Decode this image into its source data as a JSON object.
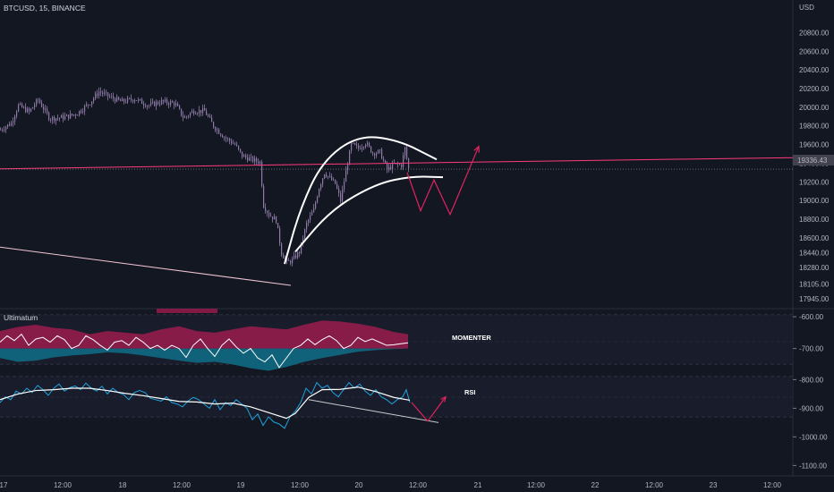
{
  "header": {
    "symbol_line": "BTCUSD, 15, BINANCE",
    "currency": "USD"
  },
  "indicator": {
    "name": "Ultimatum",
    "momentum_label": "MOMENTER",
    "rsi_label": "RSI"
  },
  "current_price_label": "19336.43",
  "colors": {
    "background": "#131722",
    "candle": "#8e7aa6",
    "pink_line": "#ff3a7a",
    "arrow": "#e0245e",
    "momentum_pink": "#9c1c4f",
    "momentum_teal": "#0f6f88",
    "rsi_blue": "#1fa3e0",
    "white": "#ffffff"
  },
  "chart_data": [
    {
      "type": "candlestick",
      "title": "BTCUSD, 15, BINANCE",
      "ylabel": "USD",
      "ylim": [
        17860,
        21150
      ],
      "y_ticks": [
        20800.0,
        20600.0,
        20400.0,
        20200.0,
        20000.0,
        19800.0,
        19600.0,
        19400.0,
        19200.0,
        19000.0,
        18800.0,
        18600.0,
        18440.0,
        18280.0,
        18105.0,
        17945.0
      ],
      "x_ticks": [
        "17",
        "12:00",
        "18",
        "12:00",
        "19",
        "12:00",
        "20",
        "12:00",
        "21",
        "12:00",
        "22",
        "12:00",
        "23",
        "12:00"
      ],
      "close_path": [
        {
          "x": 0,
          "y": 19760
        },
        {
          "x": 12,
          "y": 19830
        },
        {
          "x": 20,
          "y": 20020
        },
        {
          "x": 32,
          "y": 19950
        },
        {
          "x": 42,
          "y": 20080
        },
        {
          "x": 55,
          "y": 19880
        },
        {
          "x": 70,
          "y": 19890
        },
        {
          "x": 85,
          "y": 19930
        },
        {
          "x": 100,
          "y": 20050
        },
        {
          "x": 110,
          "y": 20170
        },
        {
          "x": 122,
          "y": 20110
        },
        {
          "x": 135,
          "y": 20060
        },
        {
          "x": 150,
          "y": 20090
        },
        {
          "x": 165,
          "y": 20020
        },
        {
          "x": 180,
          "y": 20060
        },
        {
          "x": 195,
          "y": 20040
        },
        {
          "x": 205,
          "y": 19880
        },
        {
          "x": 215,
          "y": 19960
        },
        {
          "x": 228,
          "y": 19960
        },
        {
          "x": 238,
          "y": 19800
        },
        {
          "x": 250,
          "y": 19680
        },
        {
          "x": 262,
          "y": 19600
        },
        {
          "x": 270,
          "y": 19480
        },
        {
          "x": 280,
          "y": 19440
        },
        {
          "x": 290,
          "y": 19410
        },
        {
          "x": 294,
          "y": 18950
        },
        {
          "x": 300,
          "y": 18850
        },
        {
          "x": 308,
          "y": 18790
        },
        {
          "x": 314,
          "y": 18440
        },
        {
          "x": 320,
          "y": 18330
        },
        {
          "x": 326,
          "y": 18360
        },
        {
          "x": 334,
          "y": 18450
        },
        {
          "x": 342,
          "y": 18750
        },
        {
          "x": 350,
          "y": 18900
        },
        {
          "x": 356,
          "y": 19140
        },
        {
          "x": 362,
          "y": 19300
        },
        {
          "x": 368,
          "y": 19240
        },
        {
          "x": 374,
          "y": 19180
        },
        {
          "x": 380,
          "y": 19000
        },
        {
          "x": 386,
          "y": 19310
        },
        {
          "x": 392,
          "y": 19600
        },
        {
          "x": 400,
          "y": 19560
        },
        {
          "x": 408,
          "y": 19620
        },
        {
          "x": 416,
          "y": 19510
        },
        {
          "x": 424,
          "y": 19520
        },
        {
          "x": 432,
          "y": 19330
        },
        {
          "x": 440,
          "y": 19390
        },
        {
          "x": 448,
          "y": 19380
        },
        {
          "x": 452,
          "y": 19560
        },
        {
          "x": 456,
          "y": 19340
        }
      ],
      "pink_horizontal": [
        [
          0,
          19340
        ],
        [
          886,
          19460
        ]
      ],
      "lower_trendline": [
        [
          0,
          18500
        ],
        [
          325,
          18090
        ]
      ],
      "arc_upper": [
        [
          318,
          18320
        ],
        [
          335,
          18900
        ],
        [
          360,
          19420
        ],
        [
          400,
          19700
        ],
        [
          445,
          19650
        ],
        [
          488,
          19440
        ]
      ],
      "arc_lower": [
        [
          330,
          18450
        ],
        [
          370,
          18900
        ],
        [
          420,
          19180
        ],
        [
          460,
          19260
        ],
        [
          495,
          19250
        ]
      ],
      "projection": [
        [
          455,
          19300
        ],
        [
          470,
          18890
        ],
        [
          485,
          19220
        ],
        [
          503,
          18850
        ],
        [
          535,
          19580
        ]
      ]
    },
    {
      "type": "area",
      "title": "MOMENTER",
      "ylim": [
        -780,
        -580
      ],
      "y_ticks": [
        -600.0,
        -700.0
      ],
      "upper_band": [
        [
          0,
          -645
        ],
        [
          20,
          -632
        ],
        [
          40,
          -625
        ],
        [
          60,
          -635
        ],
        [
          80,
          -640
        ],
        [
          100,
          -655
        ],
        [
          120,
          -645
        ],
        [
          140,
          -650
        ],
        [
          160,
          -655
        ],
        [
          180,
          -640
        ],
        [
          200,
          -630
        ],
        [
          220,
          -645
        ],
        [
          240,
          -650
        ],
        [
          260,
          -640
        ],
        [
          280,
          -630
        ],
        [
          300,
          -635
        ],
        [
          320,
          -640
        ],
        [
          340,
          -625
        ],
        [
          360,
          -612
        ],
        [
          380,
          -615
        ],
        [
          400,
          -622
        ],
        [
          420,
          -632
        ],
        [
          440,
          -648
        ],
        [
          456,
          -655
        ]
      ],
      "lower_band": [
        [
          0,
          -730
        ],
        [
          20,
          -742
        ],
        [
          40,
          -738
        ],
        [
          60,
          -728
        ],
        [
          80,
          -722
        ],
        [
          100,
          -718
        ],
        [
          120,
          -712
        ],
        [
          140,
          -715
        ],
        [
          160,
          -722
        ],
        [
          180,
          -730
        ],
        [
          200,
          -738
        ],
        [
          220,
          -745
        ],
        [
          240,
          -742
        ],
        [
          260,
          -750
        ],
        [
          280,
          -762
        ],
        [
          300,
          -770
        ],
        [
          320,
          -758
        ],
        [
          340,
          -742
        ],
        [
          360,
          -730
        ],
        [
          380,
          -720
        ],
        [
          400,
          -710
        ],
        [
          420,
          -705
        ],
        [
          440,
          -702
        ],
        [
          456,
          -700
        ]
      ],
      "line": [
        [
          0,
          -680
        ],
        [
          8,
          -660
        ],
        [
          16,
          -675
        ],
        [
          24,
          -655
        ],
        [
          32,
          -690
        ],
        [
          40,
          -670
        ],
        [
          48,
          -665
        ],
        [
          56,
          -680
        ],
        [
          64,
          -660
        ],
        [
          72,
          -672
        ],
        [
          80,
          -700
        ],
        [
          88,
          -690
        ],
        [
          96,
          -660
        ],
        [
          104,
          -672
        ],
        [
          112,
          -690
        ],
        [
          120,
          -705
        ],
        [
          128,
          -680
        ],
        [
          136,
          -675
        ],
        [
          144,
          -690
        ],
        [
          152,
          -665
        ],
        [
          160,
          -680
        ],
        [
          168,
          -700
        ],
        [
          176,
          -690
        ],
        [
          184,
          -705
        ],
        [
          192,
          -690
        ],
        [
          200,
          -700
        ],
        [
          208,
          -728
        ],
        [
          216,
          -690
        ],
        [
          224,
          -670
        ],
        [
          232,
          -700
        ],
        [
          240,
          -725
        ],
        [
          248,
          -690
        ],
        [
          256,
          -670
        ],
        [
          264,
          -695
        ],
        [
          272,
          -715
        ],
        [
          280,
          -700
        ],
        [
          288,
          -730
        ],
        [
          296,
          -742
        ],
        [
          304,
          -720
        ],
        [
          312,
          -760
        ],
        [
          320,
          -730
        ],
        [
          328,
          -700
        ],
        [
          336,
          -690
        ],
        [
          344,
          -670
        ],
        [
          352,
          -688
        ],
        [
          360,
          -672
        ],
        [
          368,
          -660
        ],
        [
          376,
          -675
        ],
        [
          384,
          -700
        ],
        [
          392,
          -690
        ],
        [
          400,
          -665
        ],
        [
          408,
          -678
        ],
        [
          416,
          -670
        ],
        [
          424,
          -680
        ],
        [
          432,
          -690
        ],
        [
          440,
          -688
        ],
        [
          448,
          -685
        ],
        [
          456,
          -682
        ]
      ]
    },
    {
      "type": "line",
      "title": "RSI",
      "ylim": [
        -1130,
        -780
      ],
      "y_ticks": [
        -800.0,
        -900.0,
        -1000.0,
        -1100.0
      ],
      "series": [
        {
          "values_xy": [
            [
              0,
              -880
            ],
            [
              6,
              -860
            ],
            [
              12,
              -870
            ],
            [
              18,
              -840
            ],
            [
              24,
              -850
            ],
            [
              30,
              -830
            ],
            [
              36,
              -845
            ],
            [
              42,
              -820
            ],
            [
              48,
              -835
            ],
            [
              54,
              -855
            ],
            [
              60,
              -830
            ],
            [
              66,
              -815
            ],
            [
              72,
              -840
            ],
            [
              78,
              -828
            ],
            [
              84,
              -822
            ],
            [
              90,
              -835
            ],
            [
              96,
              -812
            ],
            [
              102,
              -830
            ],
            [
              108,
              -840
            ],
            [
              114,
              -823
            ],
            [
              120,
              -850
            ],
            [
              126,
              -830
            ],
            [
              132,
              -845
            ],
            [
              138,
              -852
            ],
            [
              144,
              -870
            ],
            [
              150,
              -845
            ],
            [
              156,
              -838
            ],
            [
              162,
              -845
            ],
            [
              168,
              -865
            ],
            [
              174,
              -870
            ],
            [
              180,
              -875
            ],
            [
              186,
              -860
            ],
            [
              192,
              -880
            ],
            [
              198,
              -885
            ],
            [
              204,
              -895
            ],
            [
              210,
              -875
            ],
            [
              216,
              -862
            ],
            [
              222,
              -870
            ],
            [
              228,
              -885
            ],
            [
              234,
              -900
            ],
            [
              240,
              -870
            ],
            [
              246,
              -905
            ],
            [
              252,
              -880
            ],
            [
              258,
              -890
            ],
            [
              264,
              -870
            ],
            [
              270,
              -885
            ],
            [
              276,
              -900
            ],
            [
              282,
              -940
            ],
            [
              288,
              -920
            ],
            [
              294,
              -960
            ],
            [
              300,
              -930
            ],
            [
              306,
              -948
            ],
            [
              312,
              -955
            ],
            [
              318,
              -970
            ],
            [
              324,
              -930
            ],
            [
              330,
              -910
            ],
            [
              336,
              -880
            ],
            [
              342,
              -830
            ],
            [
              348,
              -850
            ],
            [
              354,
              -810
            ],
            [
              360,
              -830
            ],
            [
              366,
              -820
            ],
            [
              372,
              -845
            ],
            [
              378,
              -860
            ],
            [
              384,
              -835
            ],
            [
              390,
              -810
            ],
            [
              396,
              -830
            ],
            [
              402,
              -815
            ],
            [
              408,
              -840
            ],
            [
              414,
              -855
            ],
            [
              420,
              -835
            ],
            [
              426,
              -860
            ],
            [
              432,
              -870
            ],
            [
              438,
              -885
            ],
            [
              444,
              -870
            ],
            [
              450,
              -860
            ],
            [
              454,
              -835
            ],
            [
              458,
              -880
            ]
          ]
        },
        {
          "values_xy": [
            [
              0,
              -870
            ],
            [
              20,
              -850
            ],
            [
              40,
              -838
            ],
            [
              60,
              -835
            ],
            [
              80,
              -830
            ],
            [
              100,
              -830
            ],
            [
              120,
              -838
            ],
            [
              140,
              -848
            ],
            [
              160,
              -856
            ],
            [
              180,
              -866
            ],
            [
              200,
              -876
            ],
            [
              220,
              -878
            ],
            [
              240,
              -885
            ],
            [
              260,
              -882
            ],
            [
              280,
              -895
            ],
            [
              300,
              -915
            ],
            [
              320,
              -935
            ],
            [
              330,
              -918
            ],
            [
              345,
              -862
            ],
            [
              360,
              -835
            ],
            [
              380,
              -834
            ],
            [
              400,
              -826
            ],
            [
              420,
              -842
            ],
            [
              440,
              -862
            ],
            [
              458,
              -872
            ]
          ]
        }
      ],
      "trendline": [
        [
          345,
          -870
        ],
        [
          490,
          -950
        ]
      ],
      "projection": [
        [
          460,
          -880
        ],
        [
          478,
          -945
        ],
        [
          498,
          -860
        ]
      ]
    }
  ]
}
